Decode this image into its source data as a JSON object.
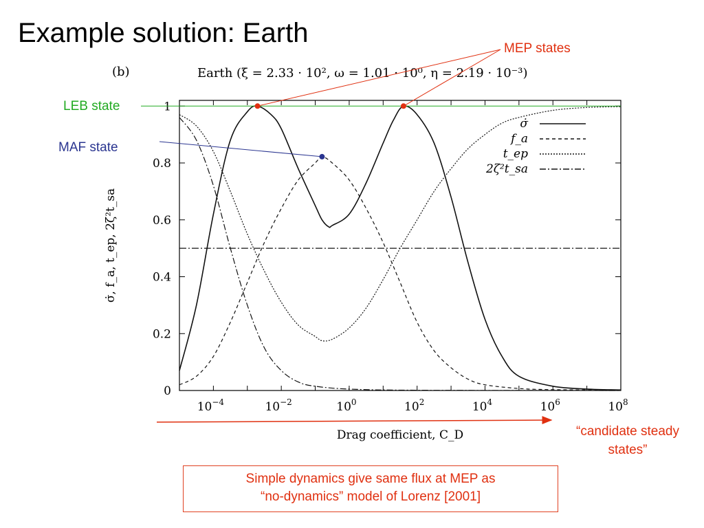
{
  "slide": {
    "title": "Example solution: Earth",
    "note_line1": "Simple dynamics give same flux at MEP as",
    "note_line2": "“no-dynamics” model of Lorenz [2001]"
  },
  "annotations": {
    "mep": "MEP states",
    "leb": "LEB state",
    "maf": "MAF state",
    "candidate_line1": "“candidate steady",
    "candidate_line2": "states”"
  },
  "colors": {
    "annotation_red": "#e03010",
    "leb_green": "#22aa22",
    "maf_blue": "#2a3590",
    "curve": "#111111"
  },
  "chart_data": {
    "type": "line",
    "panel_label": "(b)",
    "title": "Earth (ξ = 2.33 · 10², ω = 1.01 · 10⁰, η = 2.19 · 10⁻³)",
    "xlabel": "Drag coefficient, C_D",
    "ylabel": "σ̇, f_a, t_ep, 2ζ²t_sa",
    "x_scale": "log",
    "xlim": [
      1e-05,
      100000000
    ],
    "ylim": [
      0,
      1.02
    ],
    "x_ticks": [
      {
        "exp": -4,
        "label": "10−4"
      },
      {
        "exp": -2,
        "label": "10−2"
      },
      {
        "exp": 0,
        "label": "100"
      },
      {
        "exp": 2,
        "label": "102"
      },
      {
        "exp": 4,
        "label": "104"
      },
      {
        "exp": 6,
        "label": "106"
      },
      {
        "exp": 8,
        "label": "108"
      }
    ],
    "x_tick_text": {
      "base": "10",
      "sups": [
        "−4",
        "−2",
        "0",
        "2",
        "4",
        "6",
        "8"
      ]
    },
    "y_ticks": [
      0,
      0.2,
      0.4,
      0.6,
      0.8,
      1
    ],
    "y_tick_labels": [
      "0",
      "0.2",
      "0.4",
      "0.6",
      "0.8",
      "1"
    ],
    "grid": false,
    "legend_position": "top-right",
    "series": [
      {
        "name": "σ̇",
        "style": "solid",
        "points": [
          [
            -5,
            0.07
          ],
          [
            -4.5,
            0.3
          ],
          [
            -4,
            0.62
          ],
          [
            -3.5,
            0.88
          ],
          [
            -3,
            0.98
          ],
          [
            -2.7,
            1.0
          ],
          [
            -2.3,
            0.97
          ],
          [
            -2,
            0.92
          ],
          [
            -1.5,
            0.78
          ],
          [
            -1,
            0.65
          ],
          [
            -0.5,
            0.58
          ],
          [
            -0.8,
            0.6
          ],
          [
            -0.6,
            0.575
          ],
          [
            0,
            0.62
          ],
          [
            0.5,
            0.73
          ],
          [
            1,
            0.87
          ],
          [
            1.3,
            0.95
          ],
          [
            1.6,
            1.0
          ],
          [
            2,
            0.97
          ],
          [
            2.5,
            0.87
          ],
          [
            3,
            0.68
          ],
          [
            3.5,
            0.45
          ],
          [
            4,
            0.25
          ],
          [
            4.5,
            0.12
          ],
          [
            5,
            0.05
          ],
          [
            6,
            0.015
          ],
          [
            7,
            0.005
          ],
          [
            8,
            0.002
          ]
        ]
      },
      {
        "name": "f_a",
        "style": "dashed",
        "points": [
          [
            -5,
            0.02
          ],
          [
            -4.5,
            0.05
          ],
          [
            -4,
            0.12
          ],
          [
            -3.5,
            0.24
          ],
          [
            -3,
            0.38
          ],
          [
            -2.5,
            0.52
          ],
          [
            -2,
            0.64
          ],
          [
            -1.5,
            0.74
          ],
          [
            -1,
            0.8
          ],
          [
            -0.8,
            0.822
          ],
          [
            -0.5,
            0.8
          ],
          [
            0,
            0.74
          ],
          [
            0.5,
            0.64
          ],
          [
            1,
            0.52
          ],
          [
            1.5,
            0.38
          ],
          [
            2,
            0.24
          ],
          [
            2.5,
            0.14
          ],
          [
            3,
            0.08
          ],
          [
            3.5,
            0.04
          ],
          [
            4,
            0.02
          ],
          [
            5,
            0.007
          ],
          [
            6,
            0.003
          ],
          [
            8,
            0.001
          ]
        ]
      },
      {
        "name": "t_ep",
        "style": "dotted",
        "points": [
          [
            -5,
            0.97
          ],
          [
            -4.5,
            0.93
          ],
          [
            -4,
            0.84
          ],
          [
            -3.5,
            0.7
          ],
          [
            -3,
            0.55
          ],
          [
            -2.5,
            0.42
          ],
          [
            -2,
            0.31
          ],
          [
            -1.5,
            0.23
          ],
          [
            -1,
            0.19
          ],
          [
            -0.8,
            0.175
          ],
          [
            -0.5,
            0.18
          ],
          [
            0,
            0.22
          ],
          [
            0.5,
            0.29
          ],
          [
            1,
            0.39
          ],
          [
            1.5,
            0.5
          ],
          [
            2,
            0.6
          ],
          [
            2.5,
            0.7
          ],
          [
            3,
            0.78
          ],
          [
            3.5,
            0.85
          ],
          [
            4,
            0.9
          ],
          [
            4.5,
            0.94
          ],
          [
            5,
            0.96
          ],
          [
            6,
            0.985
          ],
          [
            7,
            0.995
          ],
          [
            8,
            0.998
          ]
        ]
      },
      {
        "name": "2ζ²t_sa",
        "style": "dashdot",
        "points": [
          [
            -5,
            0.96
          ],
          [
            -4.5,
            0.88
          ],
          [
            -4,
            0.72
          ],
          [
            -3.5,
            0.5
          ],
          [
            -3,
            0.3
          ],
          [
            -2.5,
            0.15
          ],
          [
            -2,
            0.07
          ],
          [
            -1.5,
            0.03
          ],
          [
            -1,
            0.015
          ],
          [
            0,
            0.005
          ],
          [
            2,
            0.001
          ],
          [
            8,
            0.0
          ]
        ]
      },
      {
        "name": "",
        "style": "dashdot-flat",
        "points": [
          [
            -5,
            0.5
          ],
          [
            8,
            0.5
          ]
        ]
      }
    ],
    "markers": [
      {
        "group": "mep",
        "x_exp": -2.7,
        "y": 1.0
      },
      {
        "group": "mep",
        "x_exp": 1.6,
        "y": 1.0
      },
      {
        "group": "maf",
        "x_exp": -0.8,
        "y": 0.822
      }
    ],
    "leb_line_y": 1.0
  }
}
